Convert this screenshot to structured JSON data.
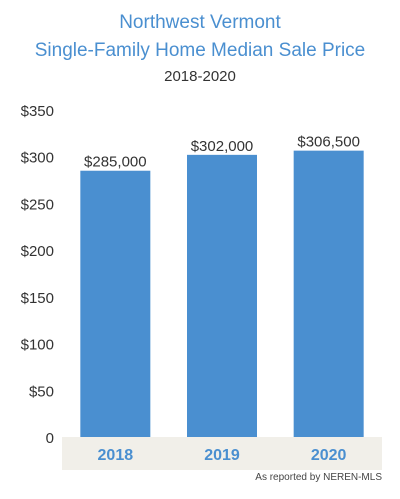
{
  "title_line1": "Northwest Vermont",
  "title_line2": "Single-Family Home Median Sale Price",
  "subtitle": "2018-2020",
  "source_note": "As reported by NEREN-MLS",
  "colors": {
    "bar": "#4a8fd0",
    "title": "#4a8fd0",
    "axis_band": "#f1efe9"
  },
  "chart_data": {
    "type": "bar",
    "categories": [
      "2018",
      "2019",
      "2020"
    ],
    "values": [
      285000,
      302000,
      306500
    ],
    "data_labels": [
      "$285,000",
      "$302,000",
      "$306,500"
    ],
    "y_tick_labels": [
      "0",
      "$50",
      "$100",
      "$150",
      "$200",
      "$250",
      "$300",
      "$350"
    ],
    "y_tick_values": [
      0,
      50000,
      100000,
      150000,
      200000,
      250000,
      300000,
      350000
    ],
    "ylim": [
      0,
      350000
    ],
    "grid": false,
    "legend": "none"
  }
}
